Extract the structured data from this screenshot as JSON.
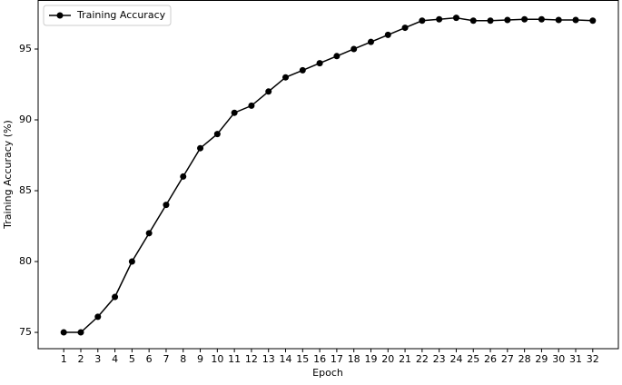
{
  "chart_data": {
    "type": "line",
    "x_label": "Epoch",
    "y_label": "Training Accuracy (%)",
    "x": [
      1,
      2,
      3,
      4,
      5,
      6,
      7,
      8,
      9,
      10,
      11,
      12,
      13,
      14,
      15,
      16,
      17,
      18,
      19,
      20,
      21,
      22,
      23,
      24,
      25,
      26,
      27,
      28,
      29,
      30,
      31,
      32
    ],
    "series": [
      {
        "name": "Training Accuracy",
        "color": "#000000",
        "values": [
          75,
          75,
          76.1,
          77.5,
          80,
          82,
          84,
          86,
          88,
          89,
          90.5,
          91,
          92,
          93,
          93.5,
          94,
          94.5,
          95,
          95.5,
          96,
          96.5,
          97,
          97.1,
          97.2,
          97,
          97,
          97.05,
          97.1,
          97.1,
          97.05,
          97.05,
          97
        ]
      }
    ],
    "xlim": [
      -0.5,
      33.5
    ],
    "xticks": [
      1,
      2,
      3,
      4,
      5,
      6,
      7,
      8,
      9,
      10,
      11,
      12,
      13,
      14,
      15,
      16,
      17,
      18,
      19,
      20,
      21,
      22,
      23,
      24,
      25,
      26,
      27,
      28,
      29,
      30,
      31,
      32
    ],
    "ylim": [
      73.85,
      98.46
    ],
    "yticks": [
      75,
      80,
      85,
      90,
      95
    ],
    "grid": false,
    "legend": "upper left"
  }
}
